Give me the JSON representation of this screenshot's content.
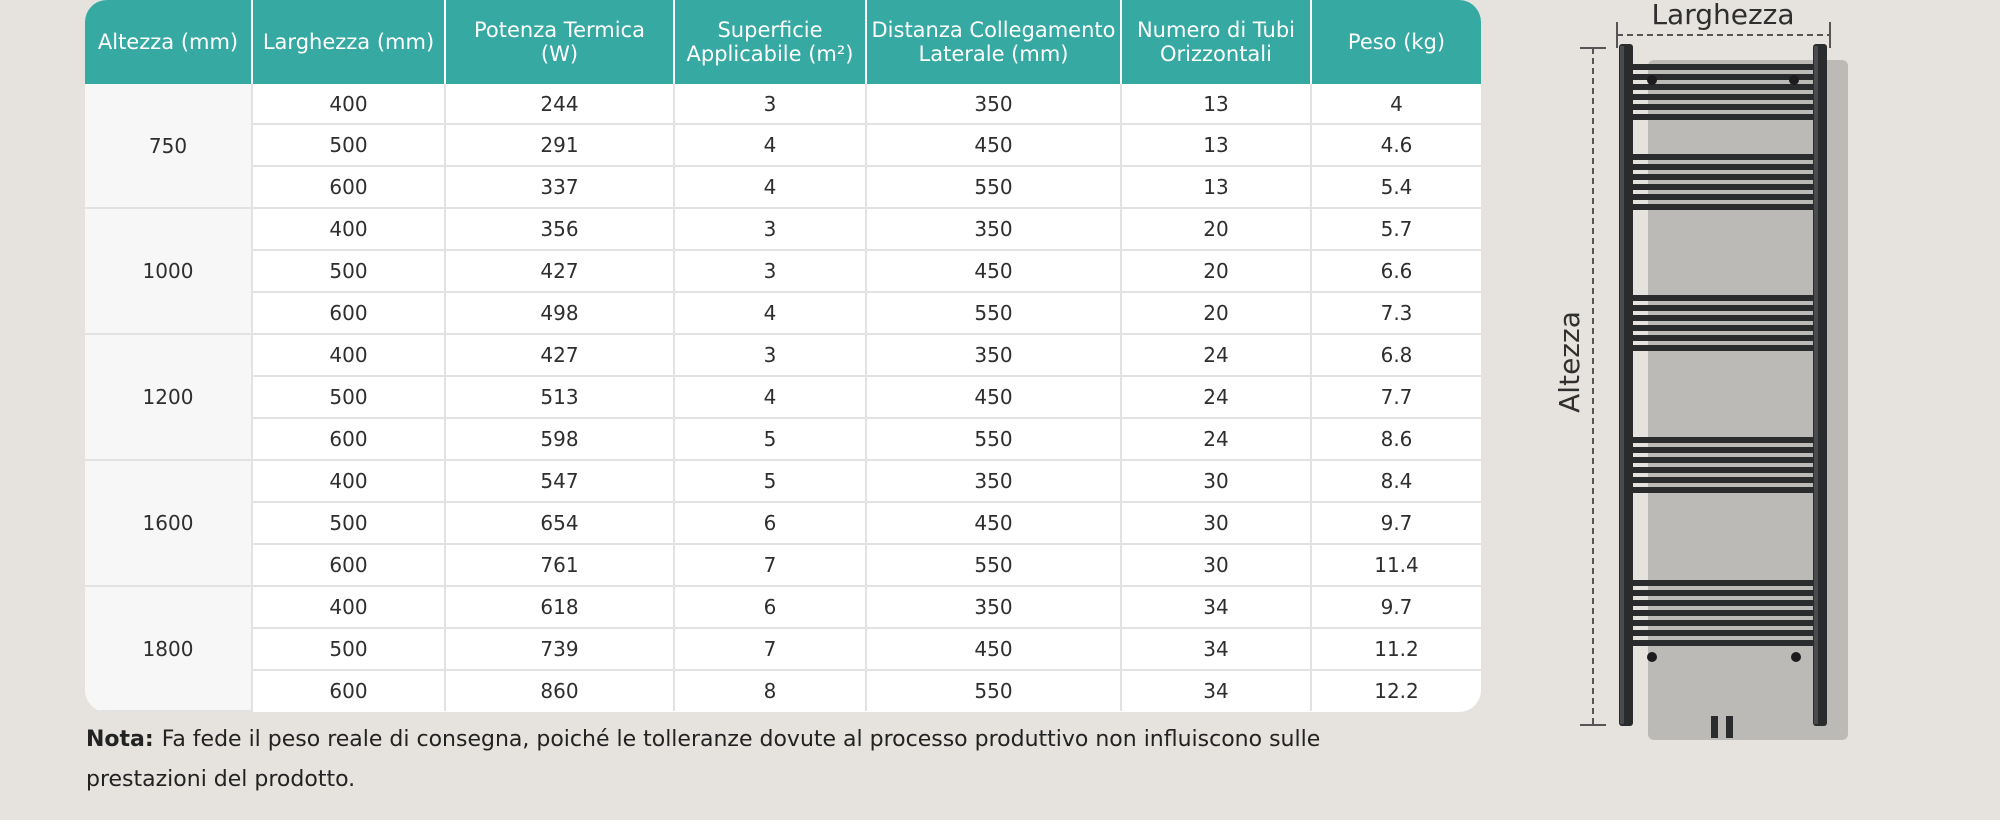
{
  "table": {
    "headers": [
      [
        "Altezza (mm)"
      ],
      [
        "Larghezza (mm)"
      ],
      [
        "Potenza Termica",
        "(W)"
      ],
      [
        "Superficie",
        "Applicabile (m²)"
      ],
      [
        "Distanza Collegamento",
        "Laterale  (mm)"
      ],
      [
        "Numero di Tubi",
        "Orizzontali"
      ],
      [
        "Peso (kg)"
      ]
    ],
    "groups": [
      {
        "altezza": "750",
        "rows": [
          [
            "400",
            "244",
            "3",
            "350",
            "13",
            "4"
          ],
          [
            "500",
            "291",
            "4",
            "450",
            "13",
            "4.6"
          ],
          [
            "600",
            "337",
            "4",
            "550",
            "13",
            "5.4"
          ]
        ]
      },
      {
        "altezza": "1000",
        "rows": [
          [
            "400",
            "356",
            "3",
            "350",
            "20",
            "5.7"
          ],
          [
            "500",
            "427",
            "3",
            "450",
            "20",
            "6.6"
          ],
          [
            "600",
            "498",
            "4",
            "550",
            "20",
            "7.3"
          ]
        ]
      },
      {
        "altezza": "1200",
        "rows": [
          [
            "400",
            "427",
            "3",
            "350",
            "24",
            "6.8"
          ],
          [
            "500",
            "513",
            "4",
            "450",
            "24",
            "7.7"
          ],
          [
            "600",
            "598",
            "5",
            "550",
            "24",
            "8.6"
          ]
        ]
      },
      {
        "altezza": "1600",
        "rows": [
          [
            "400",
            "547",
            "5",
            "350",
            "30",
            "8.4"
          ],
          [
            "500",
            "654",
            "6",
            "450",
            "30",
            "9.7"
          ],
          [
            "600",
            "761",
            "7",
            "550",
            "30",
            "11.4"
          ]
        ]
      },
      {
        "altezza": "1800",
        "rows": [
          [
            "400",
            "618",
            "6",
            "350",
            "34",
            "9.7"
          ],
          [
            "500",
            "739",
            "7",
            "450",
            "34",
            "11.2"
          ],
          [
            "600",
            "860",
            "8",
            "550",
            "34",
            "12.2"
          ]
        ]
      }
    ]
  },
  "note": {
    "label": "Nota:",
    "text": "Fa fede il peso reale di consegna, poiché le tolleranze dovute al processo produttivo non influiscono sulle prestazioni del prodotto."
  },
  "diagram": {
    "width_label": "Larghezza",
    "height_label": "Altezza",
    "icon": "towel-radiator-icon"
  },
  "colors": {
    "header_bg": "#36a9a3",
    "page_bg": "#e6e3de",
    "radiator": "#2a2b2d"
  }
}
